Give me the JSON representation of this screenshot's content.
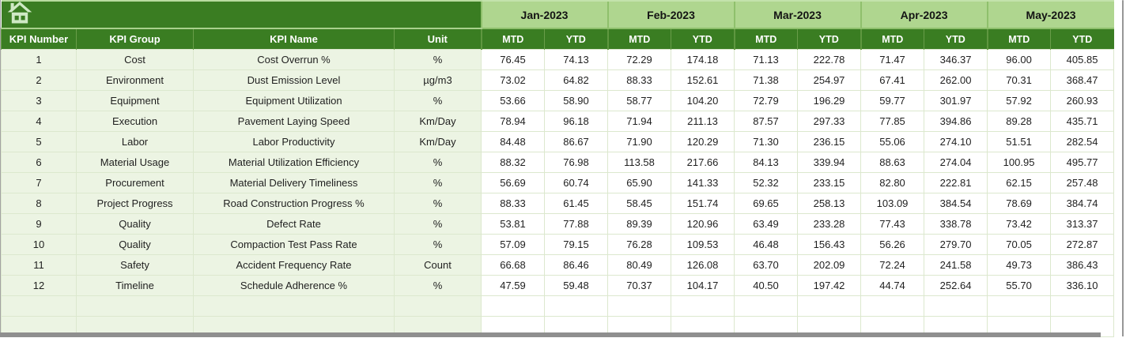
{
  "banner": {
    "icon": "home-icon"
  },
  "table": {
    "left_headers": [
      "KPI Number",
      "KPI Group",
      "KPI Name",
      "Unit"
    ],
    "months": [
      "Jan-2023",
      "Feb-2023",
      "Mar-2023",
      "Apr-2023",
      "May-2023"
    ],
    "sub_headers": [
      "MTD",
      "YTD"
    ],
    "rows": [
      [
        "1",
        "Cost",
        "Cost Overrun %",
        "%",
        "76.45",
        "74.13",
        "72.29",
        "174.18",
        "71.13",
        "222.78",
        "71.47",
        "346.37",
        "96.00",
        "405.85"
      ],
      [
        "2",
        "Environment",
        "Dust Emission Level",
        "µg/m3",
        "73.02",
        "64.82",
        "88.33",
        "152.61",
        "71.38",
        "254.97",
        "67.41",
        "262.00",
        "70.31",
        "368.47"
      ],
      [
        "3",
        "Equipment",
        "Equipment Utilization",
        "%",
        "53.66",
        "58.90",
        "58.77",
        "104.20",
        "72.79",
        "196.29",
        "59.77",
        "301.97",
        "57.92",
        "260.93"
      ],
      [
        "4",
        "Execution",
        "Pavement Laying Speed",
        "Km/Day",
        "78.94",
        "96.18",
        "71.94",
        "211.13",
        "87.57",
        "297.33",
        "77.85",
        "394.86",
        "89.28",
        "435.71"
      ],
      [
        "5",
        "Labor",
        "Labor Productivity",
        "Km/Day",
        "84.48",
        "86.67",
        "71.90",
        "120.29",
        "71.30",
        "236.15",
        "55.06",
        "274.10",
        "51.51",
        "282.54"
      ],
      [
        "6",
        "Material Usage",
        "Material Utilization Efficiency",
        "%",
        "88.32",
        "76.98",
        "113.58",
        "217.66",
        "84.13",
        "339.94",
        "88.63",
        "274.04",
        "100.95",
        "495.77"
      ],
      [
        "7",
        "Procurement",
        "Material Delivery Timeliness",
        "%",
        "56.69",
        "60.74",
        "65.90",
        "141.33",
        "52.32",
        "233.15",
        "82.80",
        "222.81",
        "62.15",
        "257.48"
      ],
      [
        "8",
        "Project Progress",
        "Road Construction Progress %",
        "%",
        "88.33",
        "61.45",
        "58.45",
        "151.74",
        "69.65",
        "258.13",
        "103.09",
        "384.54",
        "78.69",
        "384.74"
      ],
      [
        "9",
        "Quality",
        "Defect Rate",
        "%",
        "53.81",
        "77.88",
        "89.39",
        "120.96",
        "63.49",
        "233.28",
        "77.43",
        "338.78",
        "73.42",
        "313.37"
      ],
      [
        "10",
        "Quality",
        "Compaction Test Pass Rate",
        "%",
        "57.09",
        "79.15",
        "76.28",
        "109.53",
        "46.48",
        "156.43",
        "56.26",
        "279.70",
        "70.05",
        "272.87"
      ],
      [
        "11",
        "Safety",
        "Accident Frequency Rate",
        "Count",
        "66.68",
        "86.46",
        "80.49",
        "126.08",
        "63.70",
        "202.09",
        "72.24",
        "241.58",
        "49.73",
        "386.43"
      ],
      [
        "12",
        "Timeline",
        "Schedule Adherence %",
        "%",
        "47.59",
        "59.48",
        "70.37",
        "104.17",
        "40.50",
        "197.42",
        "44.74",
        "252.64",
        "55.70",
        "336.10"
      ]
    ],
    "empty_row_count": 2
  },
  "colors": {
    "header_dark_green": "#3a7d22",
    "month_light_green": "#afd68f",
    "label_pale_green": "#ecf4e3",
    "grid_border": "#dce8ce",
    "window_edge_gray": "#8f8f8f"
  }
}
